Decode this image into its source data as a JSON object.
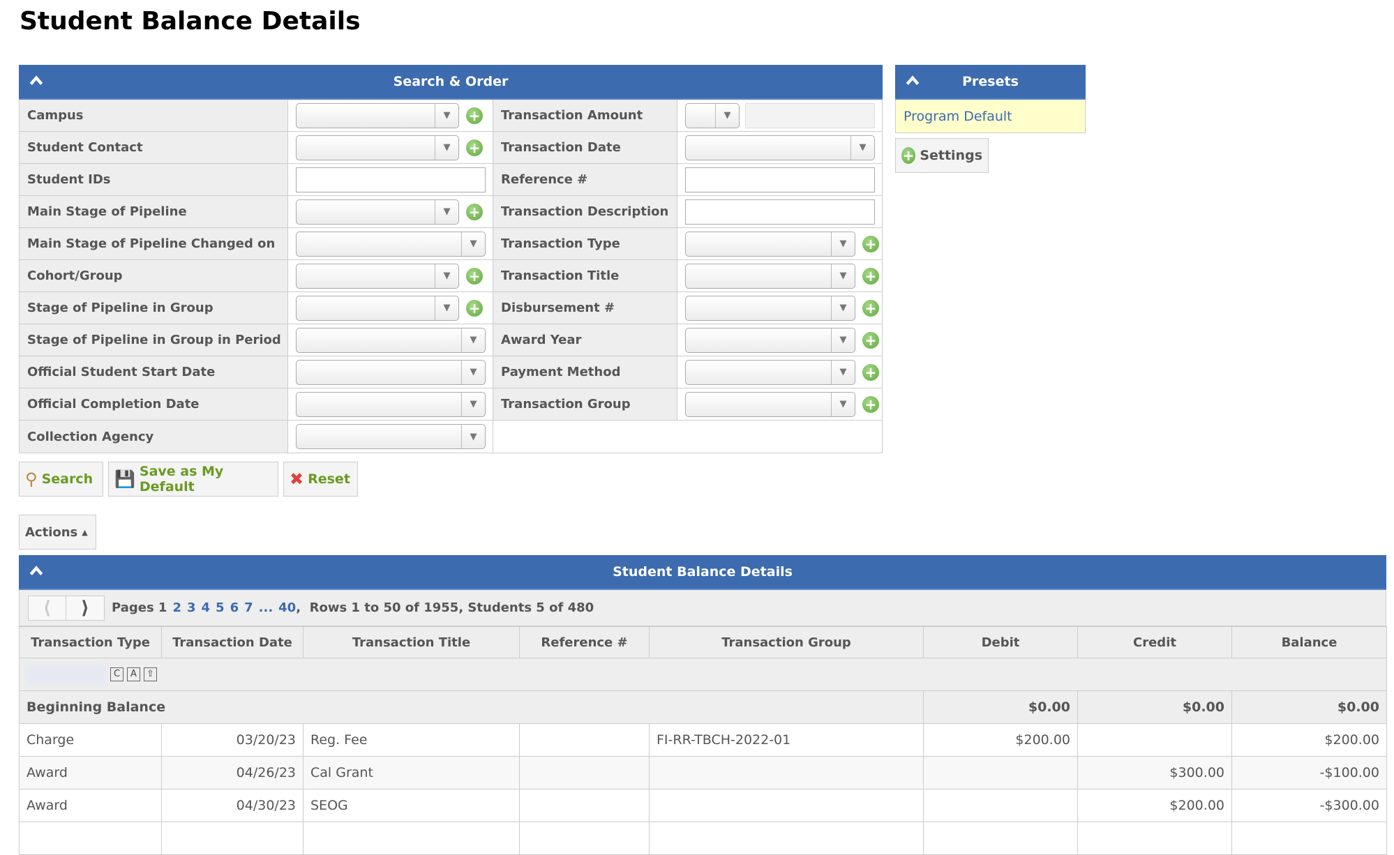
{
  "page_title": "Student Balance Details",
  "search_panel": {
    "title": "Search & Order",
    "rows": [
      {
        "left": "Campus",
        "left_ctl": "select-plus",
        "right": "Transaction Amount",
        "right_ctl": "amount"
      },
      {
        "left": "Student Contact",
        "left_ctl": "select-plus",
        "right": "Transaction Date",
        "right_ctl": "select"
      },
      {
        "left": "Student IDs",
        "left_ctl": "text",
        "right": "Reference #",
        "right_ctl": "text"
      },
      {
        "left": "Main Stage of Pipeline",
        "left_ctl": "select-plus",
        "right": "Transaction Description",
        "right_ctl": "text"
      },
      {
        "left": "Main Stage of Pipeline Changed on",
        "left_ctl": "select",
        "right": "Transaction Type",
        "right_ctl": "select-plus"
      },
      {
        "left": "Cohort/Group",
        "left_ctl": "select-plus",
        "right": "Transaction Title",
        "right_ctl": "select-plus"
      },
      {
        "left": "Stage of Pipeline in Group",
        "left_ctl": "select-plus",
        "right": "Disbursement #",
        "right_ctl": "select-plus"
      },
      {
        "left": "Stage of Pipeline in Group in Period",
        "left_ctl": "select",
        "right": "Award Year",
        "right_ctl": "select-plus"
      },
      {
        "left": "Official Student Start Date",
        "left_ctl": "select",
        "right": "Payment Method",
        "right_ctl": "select-plus"
      },
      {
        "left": "Official Completion Date",
        "left_ctl": "select",
        "right": "Transaction Group",
        "right_ctl": "select-plus"
      },
      {
        "left": "Collection Agency",
        "left_ctl": "select",
        "right": "",
        "right_ctl": "none"
      }
    ]
  },
  "presets": {
    "title": "Presets",
    "items": [
      "Program Default"
    ],
    "settings_label": "Settings"
  },
  "buttons": {
    "search": "Search",
    "save_default": "Save as My Default",
    "reset": "Reset",
    "actions": "Actions"
  },
  "results": {
    "title": "Student Balance Details",
    "pager": {
      "prefix": "Pages 1",
      "pages": [
        "2",
        "3",
        "4",
        "5",
        "6",
        "7",
        "...",
        "40"
      ],
      "summary": ",  Rows 1 to 50 of 1955, Students 5 of 480"
    },
    "columns": [
      "Transaction Type",
      "Transaction Date",
      "Transaction Title",
      "Reference #",
      "Transaction Group",
      "Debit",
      "Credit",
      "Balance"
    ],
    "group_icons": [
      "C",
      "A",
      "⇧"
    ],
    "beginning": {
      "label": "Beginning Balance",
      "debit": "$0.00",
      "credit": "$0.00",
      "balance": "$0.00"
    },
    "rows": [
      [
        "Charge",
        "03/20/23",
        "Reg. Fee",
        "",
        "FI-RR-TBCH-2022-01",
        "$200.00",
        "",
        "$200.00"
      ],
      [
        "Award",
        "04/26/23",
        "Cal Grant",
        "",
        "",
        "",
        "$300.00",
        "-$100.00"
      ],
      [
        "Award",
        "04/30/23",
        "SEOG",
        "",
        "",
        "",
        "$200.00",
        "-$300.00"
      ]
    ]
  },
  "colors": {
    "header_blue": "#3c6bb0",
    "preset_bg": "#ffffcc",
    "button_green": "#6a9a22"
  }
}
